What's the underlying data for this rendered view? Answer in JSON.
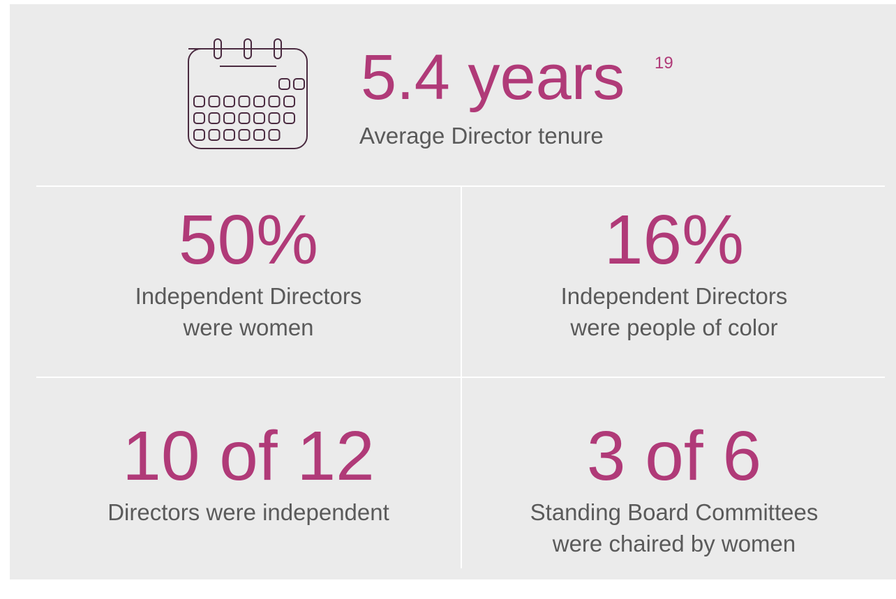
{
  "header": {
    "stat": "5.4 years",
    "footnote": "19",
    "label": "Average Director tenure"
  },
  "stats": [
    {
      "value": "50%",
      "label_lines": [
        "Independent Directors",
        "were women"
      ]
    },
    {
      "value": "16%",
      "label_lines": [
        "Independent Directors",
        "were people of color"
      ]
    },
    {
      "value": "10 of 12",
      "label_lines": [
        "Directors were independent"
      ]
    },
    {
      "value": "3 of 6",
      "label_lines": [
        "Standing Board Committees",
        "were chaired by women"
      ]
    }
  ]
}
